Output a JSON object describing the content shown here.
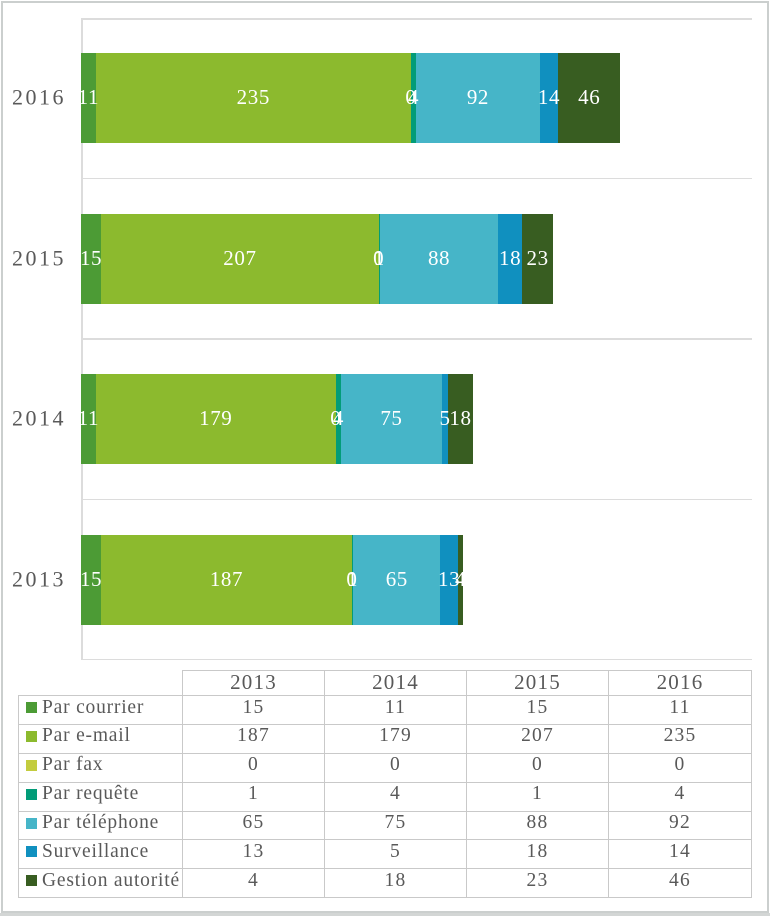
{
  "chart_data": {
    "type": "bar",
    "orientation": "horizontal-stacked",
    "categories": [
      "2013",
      "2014",
      "2015",
      "2016"
    ],
    "category_display_order_top_to_bottom": [
      "2016",
      "2015",
      "2014",
      "2013"
    ],
    "series": [
      {
        "name": "Par courrier",
        "color": "#4c9b35",
        "values": [
          15,
          11,
          15,
          11
        ]
      },
      {
        "name": "Par e-mail",
        "color": "#8cba2e",
        "values": [
          187,
          179,
          207,
          235
        ]
      },
      {
        "name": "Par fax",
        "color": "#c3cc3e",
        "values": [
          0,
          0,
          0,
          0
        ]
      },
      {
        "name": "Par requête",
        "color": "#029c78",
        "values": [
          1,
          4,
          1,
          4
        ]
      },
      {
        "name": "Par téléphone",
        "color": "#46b5c8",
        "values": [
          65,
          75,
          88,
          92
        ]
      },
      {
        "name": "Surveillance",
        "color": "#1090bf",
        "values": [
          13,
          5,
          18,
          14
        ]
      },
      {
        "name": "Gestion autorité",
        "color": "#385d21",
        "values": [
          4,
          18,
          23,
          46
        ]
      }
    ],
    "xlim": [
      0,
      500
    ],
    "value_labels": "white, centered in each segment, zeros shown",
    "gridlines": "horizontal category separators only",
    "legend_position": "data-table left column keys",
    "title": "",
    "xlabel": "",
    "ylabel": ""
  },
  "table": {
    "corner_label": "",
    "column_headers": [
      "2013",
      "2014",
      "2015",
      "2016"
    ],
    "rows": [
      {
        "label": "Par courrier",
        "values": [
          "15",
          "11",
          "15",
          "11"
        ]
      },
      {
        "label": "Par e-mail",
        "values": [
          "187",
          "179",
          "207",
          "235"
        ]
      },
      {
        "label": "Par fax",
        "values": [
          "0",
          "0",
          "0",
          "0"
        ]
      },
      {
        "label": "Par requête",
        "values": [
          "1",
          "4",
          "1",
          "4"
        ]
      },
      {
        "label": "Par téléphone",
        "values": [
          "65",
          "75",
          "88",
          "92"
        ]
      },
      {
        "label": "Surveillance",
        "values": [
          "13",
          "5",
          "18",
          "14"
        ]
      },
      {
        "label": "Gestion autorité",
        "values": [
          "4",
          "18",
          "23",
          "46"
        ]
      }
    ]
  },
  "colors": {
    "text_gray": "#595959",
    "grid_gray": "#dcdcdc",
    "table_border_gray": "#c9c9c9",
    "frame_gray": "#cbcfce"
  }
}
